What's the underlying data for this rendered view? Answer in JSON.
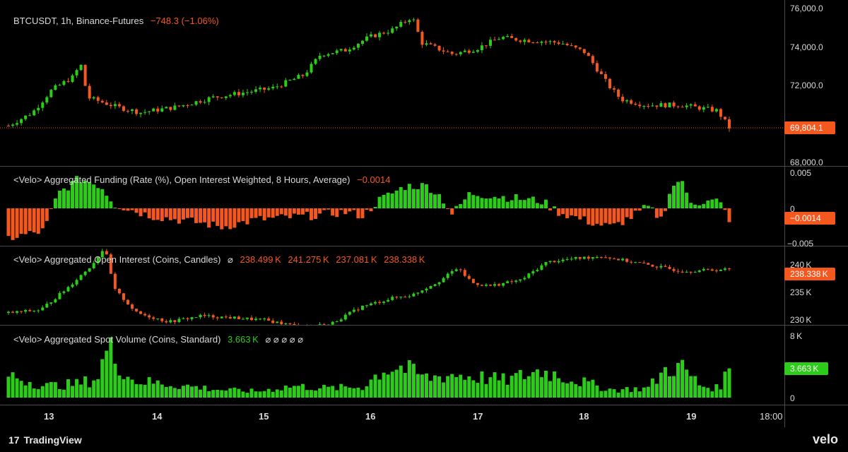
{
  "colors": {
    "up": "#2ecc1a",
    "down": "#f5581f",
    "grid_line": "#3a3a3a",
    "text": "#d9d9d9"
  },
  "panes": {
    "price": {
      "title": "BTCUSDT, 1h, Binance-Futures",
      "change": "−748.3 (−1.06%)",
      "axis_ticks": [
        "76,000.0",
        "74,000.0",
        "72,000.0",
        "68,000.0"
      ],
      "last_label": "69,804.1"
    },
    "funding": {
      "title": "<Velo> Aggregated Funding (Rate (%), Open Interest Weighted, 8 Hours, Average)",
      "value": "−0.0014",
      "axis_ticks": [
        "0.005",
        "0",
        "−0.005"
      ],
      "last_label": "−0.0014"
    },
    "oi": {
      "title": "<Velo> Aggregated Open Interest (Coins, Candles)",
      "ohlc_icon": "⌀",
      "ohlc": [
        "238.499 K",
        "241.275 K",
        "237.081 K",
        "238.338 K"
      ],
      "axis_ticks": [
        "240 K",
        "235 K",
        "230 K"
      ],
      "last_label": "238.338 K"
    },
    "volume": {
      "title": "<Velo> Aggregated Spot Volume (Coins, Standard)",
      "value": "3.663 K",
      "extra": "⌀  ⌀  ⌀  ⌀  ⌀",
      "axis_ticks": [
        "8 K",
        "0"
      ],
      "last_label": "3.663 K"
    }
  },
  "time_axis": [
    "13",
    "14",
    "15",
    "16",
    "17",
    "18",
    "19",
    "18:00"
  ],
  "footer": {
    "brand": "TradingView",
    "velo": "velo"
  },
  "chart_data": [
    {
      "type": "candlestick",
      "title": "BTCUSDT, 1h, Binance-Futures",
      "x": [
        "13",
        "14",
        "15",
        "16",
        "17",
        "18",
        "19"
      ],
      "close_approx": [
        69900,
        71400,
        70500,
        70800,
        72200,
        73600,
        75600,
        74300,
        73700,
        74400,
        71300,
        70800,
        69804.1
      ],
      "ylim": [
        67800,
        76200
      ],
      "last": 69804.1
    },
    {
      "type": "bar",
      "title": "Aggregated Funding (Rate (%))",
      "ylim": [
        -0.005,
        0.005
      ],
      "last": -0.0014
    },
    {
      "type": "candlestick",
      "title": "Aggregated Open Interest (Coins, Candles)",
      "ylim": [
        229000,
        242000
      ],
      "last": 238338
    },
    {
      "type": "bar",
      "title": "Aggregated Spot Volume (Coins, Standard)",
      "ylim": [
        0,
        8000
      ],
      "last": 3663
    }
  ]
}
